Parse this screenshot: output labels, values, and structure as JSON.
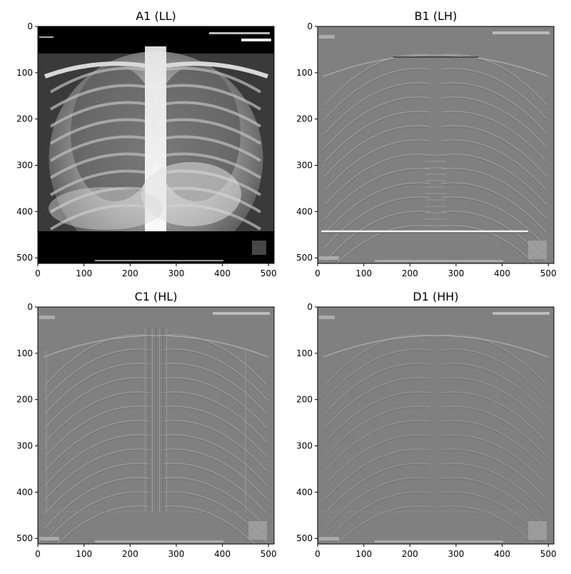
{
  "figure": {
    "panels": [
      {
        "title": "A1 (LL)",
        "variant": "ll",
        "xticks": [
          "0",
          "100",
          "200",
          "300",
          "400",
          "500"
        ],
        "yticks": [
          "0",
          "100",
          "200",
          "300",
          "400",
          "500"
        ]
      },
      {
        "title": "B1 (LH)",
        "variant": "lh",
        "xticks": [
          "0",
          "100",
          "200",
          "300",
          "400",
          "500"
        ],
        "yticks": [
          "0",
          "100",
          "200",
          "300",
          "400",
          "500"
        ]
      },
      {
        "title": "C1 (HL)",
        "variant": "hl",
        "xticks": [
          "0",
          "100",
          "200",
          "300",
          "400",
          "500"
        ],
        "yticks": [
          "0",
          "100",
          "200",
          "300",
          "400",
          "500"
        ]
      },
      {
        "title": "D1 (HH)",
        "variant": "hh",
        "xticks": [
          "0",
          "100",
          "200",
          "300",
          "400",
          "500"
        ],
        "yticks": [
          "0",
          "100",
          "200",
          "300",
          "400",
          "500"
        ]
      }
    ],
    "colors": {
      "ll_background": "#000000",
      "detail_background": "#808080",
      "axis": "#000000"
    }
  }
}
